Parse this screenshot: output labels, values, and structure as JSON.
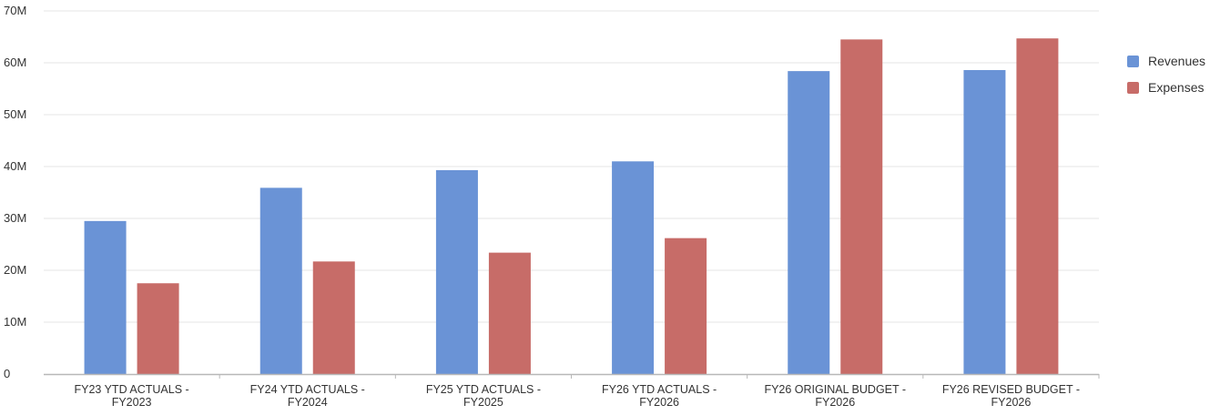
{
  "chart_data": {
    "type": "bar",
    "categories": [
      [
        "FY23 YTD ACTUALS -",
        "FY2023"
      ],
      [
        "FY24 YTD ACTUALS -",
        "FY2024"
      ],
      [
        "FY25 YTD ACTUALS -",
        "FY2025"
      ],
      [
        "FY26 YTD ACTUALS -",
        "FY2026"
      ],
      [
        "FY26 ORIGINAL BUDGET -",
        "FY2026"
      ],
      [
        "FY26 REVISED BUDGET -",
        "FY2026"
      ]
    ],
    "series": [
      {
        "name": "Revenues",
        "color": "#6a93d6",
        "values": [
          29.5,
          35.9,
          39.3,
          41.0,
          58.4,
          58.6
        ]
      },
      {
        "name": "Expenses",
        "color": "#c76c68",
        "values": [
          17.5,
          21.7,
          23.4,
          26.2,
          64.5,
          64.7
        ]
      }
    ],
    "y_ticks": [
      {
        "value": 0,
        "label": "0"
      },
      {
        "value": 10,
        "label": "10M"
      },
      {
        "value": 20,
        "label": "20M"
      },
      {
        "value": 30,
        "label": "30M"
      },
      {
        "value": 40,
        "label": "40M"
      },
      {
        "value": 50,
        "label": "50M"
      },
      {
        "value": 60,
        "label": "60M"
      },
      {
        "value": 70,
        "label": "70M"
      }
    ],
    "ylim": [
      0,
      70
    ],
    "y_unit": "M",
    "grid": true,
    "legend_position": "right",
    "title": "",
    "xlabel": "",
    "ylabel": ""
  }
}
